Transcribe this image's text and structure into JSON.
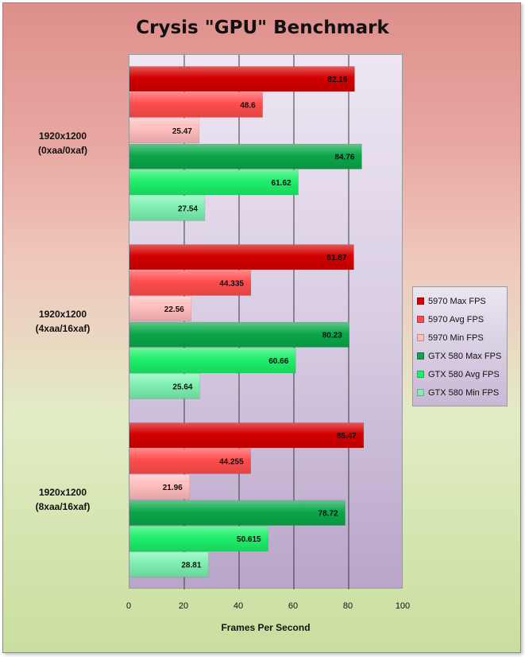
{
  "chart_data": {
    "type": "bar",
    "orientation": "horizontal",
    "title": "Crysis \"GPU\" Benchmark",
    "xlabel": "Frames Per Second",
    "ylabel": "",
    "xlim": [
      0,
      100
    ],
    "x_ticks": [
      "0",
      "20",
      "40",
      "60",
      "80",
      "100"
    ],
    "grid": true,
    "legend_position": "right",
    "categories": [
      [
        "1920x1200",
        "(0xaa/0xaf)"
      ],
      [
        "1920x1200",
        "(4xaa/16xaf)"
      ],
      [
        "1920x1200",
        "(8xaa/16xaf)"
      ]
    ],
    "series": [
      {
        "name": "5970 Max FPS",
        "color": "#d40000",
        "values": [
          82.16,
          81.87,
          85.47
        ],
        "labels": [
          "82.16",
          "81.87",
          "85.47"
        ]
      },
      {
        "name": "5970 Avg FPS",
        "color": "#ff4d4d",
        "values": [
          48.6,
          44.335,
          44.255
        ],
        "labels": [
          "48.6",
          "44.335",
          "44.255"
        ]
      },
      {
        "name": "5970 Min FPS",
        "color": "#ffbcbc",
        "values": [
          25.47,
          22.56,
          21.96
        ],
        "labels": [
          "25.47",
          "22.56",
          "21.96"
        ]
      },
      {
        "name": "GTX 580 Max FPS",
        "color": "#0aa84a",
        "values": [
          84.76,
          80.23,
          78.72
        ],
        "labels": [
          "84.76",
          "80.23",
          "78.72"
        ]
      },
      {
        "name": "GTX 580 Avg FPS",
        "color": "#1ef06a",
        "values": [
          61.62,
          60.66,
          50.615
        ],
        "labels": [
          "61.62",
          "60.66",
          "50.615"
        ]
      },
      {
        "name": "GTX 580 Min FPS",
        "color": "#7df0b0",
        "values": [
          27.54,
          25.64,
          28.81
        ],
        "labels": [
          "27.54",
          "25.64",
          "28.81"
        ]
      }
    ]
  }
}
